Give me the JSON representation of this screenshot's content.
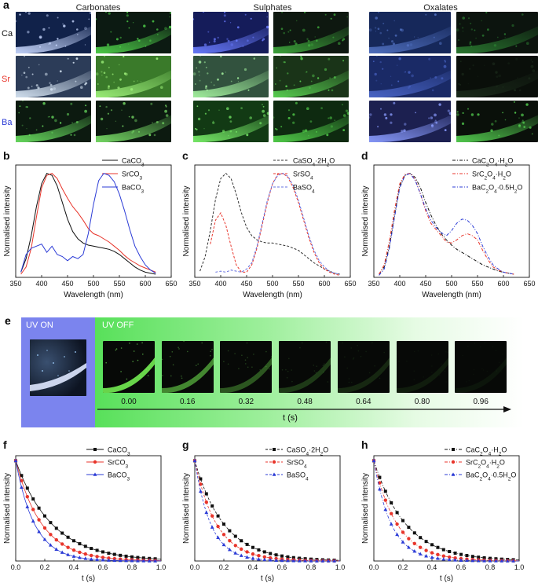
{
  "panel_a": {
    "letter": "a",
    "groups": [
      "Carbonates",
      "Sulphates",
      "Oxalates"
    ],
    "rows": [
      {
        "label": "Ca",
        "color": "#111111"
      },
      {
        "label": "Sr",
        "color": "#e8352b"
      },
      {
        "label": "Ba",
        "color": "#2b3bd6"
      }
    ]
  },
  "panel_e": {
    "letter": "e",
    "uv_on": "UV ON",
    "uv_off": "UV OFF",
    "times": [
      "0.00",
      "0.16",
      "0.32",
      "0.48",
      "0.64",
      "0.80",
      "0.96"
    ],
    "axis_label": "t (s)",
    "intensities": [
      1.0,
      0.62,
      0.38,
      0.24,
      0.15,
      0.09,
      0.06
    ]
  },
  "colors": {
    "black": "#111111",
    "red": "#e8352b",
    "blue": "#2b3bd6",
    "uv_bg": "#7b84ee",
    "glow": "#58e05a"
  },
  "chart_data": [
    {
      "id": "b",
      "type": "line",
      "title": "",
      "xlabel": "Wavelength (nm)",
      "ylabel": "Normalised intensity",
      "xlim": [
        350,
        650
      ],
      "ylim": [
        0,
        1.08
      ],
      "xticks": [
        350,
        400,
        450,
        500,
        550,
        600,
        650
      ],
      "series": [
        {
          "name": "CaCO₃",
          "color": "#111111",
          "dash": "",
          "x": [
            360,
            370,
            380,
            390,
            400,
            410,
            420,
            430,
            440,
            450,
            460,
            470,
            480,
            490,
            500,
            510,
            520,
            530,
            540,
            550,
            560,
            570,
            580,
            590,
            600,
            610,
            620
          ],
          "y": [
            0.05,
            0.18,
            0.4,
            0.68,
            0.9,
            1.0,
            0.98,
            0.88,
            0.72,
            0.56,
            0.44,
            0.37,
            0.33,
            0.31,
            0.3,
            0.29,
            0.28,
            0.27,
            0.25,
            0.22,
            0.18,
            0.14,
            0.1,
            0.07,
            0.05,
            0.04,
            0.03
          ]
        },
        {
          "name": "SrCO₃",
          "color": "#e8352b",
          "dash": "",
          "x": [
            360,
            370,
            380,
            390,
            400,
            410,
            420,
            430,
            440,
            450,
            460,
            470,
            480,
            490,
            500,
            510,
            520,
            530,
            540,
            550,
            560,
            570,
            580,
            590,
            600,
            610,
            620
          ],
          "y": [
            0.03,
            0.1,
            0.28,
            0.58,
            0.86,
            0.98,
            1.0,
            0.95,
            0.85,
            0.76,
            0.68,
            0.62,
            0.55,
            0.47,
            0.42,
            0.4,
            0.37,
            0.34,
            0.3,
            0.26,
            0.21,
            0.17,
            0.14,
            0.11,
            0.09,
            0.07,
            0.05
          ]
        },
        {
          "name": "BaCO₃",
          "color": "#2b3bd6",
          "dash": "",
          "x": [
            360,
            370,
            380,
            390,
            400,
            410,
            420,
            430,
            440,
            450,
            460,
            470,
            480,
            490,
            500,
            510,
            520,
            530,
            540,
            550,
            560,
            570,
            580,
            590,
            600,
            610,
            620
          ],
          "y": [
            0.05,
            0.22,
            0.28,
            0.3,
            0.32,
            0.24,
            0.3,
            0.22,
            0.2,
            0.16,
            0.2,
            0.18,
            0.22,
            0.42,
            0.7,
            0.93,
            1.0,
            0.98,
            0.92,
            0.8,
            0.64,
            0.46,
            0.3,
            0.2,
            0.12,
            0.07,
            0.04
          ]
        }
      ]
    },
    {
      "id": "c",
      "type": "line",
      "title": "",
      "xlabel": "Wavelength (nm)",
      "ylabel": "Normalised intensity",
      "xlim": [
        350,
        650
      ],
      "ylim": [
        0,
        1.08
      ],
      "xticks": [
        350,
        400,
        450,
        500,
        550,
        600,
        650
      ],
      "series": [
        {
          "name": "CaSO₄·2H₂O",
          "color": "#333333",
          "dash": "3,2",
          "x": [
            360,
            370,
            380,
            390,
            400,
            410,
            420,
            430,
            440,
            450,
            460,
            470,
            480,
            490,
            500,
            510,
            520,
            530,
            540,
            550,
            560,
            570,
            580,
            590,
            600,
            610,
            620,
            630
          ],
          "y": [
            0.06,
            0.2,
            0.45,
            0.75,
            0.95,
            1.0,
            0.95,
            0.8,
            0.62,
            0.48,
            0.4,
            0.36,
            0.34,
            0.33,
            0.33,
            0.32,
            0.31,
            0.3,
            0.28,
            0.26,
            0.22,
            0.18,
            0.14,
            0.11,
            0.08,
            0.06,
            0.04,
            0.03
          ]
        },
        {
          "name": "SrSO₄",
          "color": "#e8352b",
          "dash": "3,2",
          "x": [
            380,
            390,
            400,
            410,
            420,
            430,
            440,
            450,
            460,
            470,
            480,
            490,
            500,
            510,
            520,
            530,
            540,
            550,
            560,
            570,
            580,
            590,
            600,
            610,
            620,
            630
          ],
          "y": [
            0.32,
            0.55,
            0.62,
            0.5,
            0.3,
            0.12,
            0.05,
            0.05,
            0.12,
            0.28,
            0.5,
            0.72,
            0.9,
            0.99,
            1.0,
            0.96,
            0.86,
            0.72,
            0.55,
            0.38,
            0.24,
            0.14,
            0.08,
            0.05,
            0.03,
            0.02
          ]
        },
        {
          "name": "BaSO₄",
          "color": "#6570e0",
          "dash": "3,2",
          "x": [
            390,
            400,
            410,
            420,
            430,
            440,
            450,
            460,
            470,
            480,
            490,
            500,
            510,
            520,
            530,
            540,
            550,
            560,
            570,
            580,
            590,
            600,
            610,
            620,
            630
          ],
          "y": [
            0.05,
            0.06,
            0.05,
            0.07,
            0.06,
            0.05,
            0.08,
            0.14,
            0.3,
            0.52,
            0.74,
            0.9,
            0.98,
            1.0,
            0.97,
            0.88,
            0.74,
            0.57,
            0.4,
            0.26,
            0.16,
            0.1,
            0.06,
            0.04,
            0.03
          ]
        }
      ]
    },
    {
      "id": "d",
      "type": "line",
      "title": "",
      "xlabel": "Wavelength (nm)",
      "ylabel": "Normalised intensity",
      "xlim": [
        350,
        650
      ],
      "ylim": [
        0,
        1.08
      ],
      "xticks": [
        350,
        400,
        450,
        500,
        550,
        600,
        650
      ],
      "series": [
        {
          "name": "CaC₂O₄·H₂O",
          "color": "#111111",
          "dash": "4,2,1,2",
          "x": [
            360,
            370,
            380,
            390,
            400,
            410,
            420,
            430,
            440,
            450,
            460,
            470,
            480,
            490,
            500,
            510,
            520,
            530,
            540,
            550,
            560,
            570,
            580,
            590,
            600,
            610,
            620
          ],
          "y": [
            0.03,
            0.1,
            0.3,
            0.6,
            0.88,
            0.98,
            1.0,
            0.96,
            0.86,
            0.72,
            0.6,
            0.5,
            0.42,
            0.36,
            0.31,
            0.27,
            0.24,
            0.21,
            0.18,
            0.15,
            0.12,
            0.1,
            0.08,
            0.06,
            0.05,
            0.04,
            0.03
          ]
        },
        {
          "name": "SrC₂O₄·H₂O",
          "color": "#e8352b",
          "dash": "4,2,1,2",
          "x": [
            360,
            370,
            380,
            390,
            400,
            410,
            420,
            430,
            440,
            450,
            460,
            470,
            480,
            490,
            500,
            510,
            520,
            530,
            540,
            550,
            560,
            570,
            580,
            590,
            600,
            610,
            620
          ],
          "y": [
            0.03,
            0.12,
            0.35,
            0.65,
            0.9,
            0.99,
            1.0,
            0.94,
            0.8,
            0.64,
            0.52,
            0.46,
            0.4,
            0.34,
            0.33,
            0.36,
            0.4,
            0.42,
            0.4,
            0.36,
            0.26,
            0.17,
            0.1,
            0.07,
            0.05,
            0.04,
            0.03
          ]
        },
        {
          "name": "BaC₂O₄·0.5H₂O",
          "color": "#2b3bd6",
          "dash": "4,2,1,2",
          "x": [
            360,
            370,
            380,
            390,
            400,
            410,
            420,
            430,
            440,
            450,
            460,
            470,
            480,
            490,
            500,
            510,
            520,
            530,
            540,
            550,
            560,
            570,
            580,
            590,
            600,
            610,
            620
          ],
          "y": [
            0.02,
            0.08,
            0.28,
            0.58,
            0.86,
            0.98,
            1.0,
            0.93,
            0.8,
            0.66,
            0.55,
            0.48,
            0.43,
            0.4,
            0.45,
            0.52,
            0.56,
            0.55,
            0.5,
            0.42,
            0.3,
            0.2,
            0.12,
            0.08,
            0.05,
            0.04,
            0.03
          ]
        }
      ]
    },
    {
      "id": "f",
      "type": "line",
      "title": "",
      "xlabel": "t (s)",
      "ylabel": "Normalised intensity",
      "xlim": [
        0,
        1.0
      ],
      "ylim": [
        0,
        1.05
      ],
      "xticks": [
        0.0,
        0.2,
        0.4,
        0.6,
        0.8,
        1.0
      ],
      "tau": [
        0.25,
        0.18,
        0.13
      ],
      "series": [
        {
          "name": "CaCO₃",
          "color": "#111111",
          "marker": "square",
          "dash": ""
        },
        {
          "name": "SrCO₃",
          "color": "#e8352b",
          "marker": "circle",
          "dash": ""
        },
        {
          "name": "BaCO₃",
          "color": "#2b3bd6",
          "marker": "triangle",
          "dash": ""
        }
      ]
    },
    {
      "id": "g",
      "type": "line",
      "title": "",
      "xlabel": "t (s)",
      "ylabel": "Normalised intensity",
      "xlim": [
        0,
        1.0
      ],
      "ylim": [
        0,
        1.05
      ],
      "xticks": [
        0.0,
        0.2,
        0.4,
        0.6,
        0.8,
        1.0
      ],
      "tau": [
        0.2,
        0.15,
        0.11
      ],
      "series": [
        {
          "name": "CaSO₄·2H₂O",
          "color": "#111111",
          "marker": "square",
          "dash": "3,2"
        },
        {
          "name": "SrSO₄",
          "color": "#e8352b",
          "marker": "circle",
          "dash": "3,2"
        },
        {
          "name": "BaSO₄",
          "color": "#2b3bd6",
          "marker": "triangle",
          "dash": "3,2"
        }
      ]
    },
    {
      "id": "h",
      "type": "line",
      "title": "",
      "xlabel": "t (s)",
      "ylabel": "Normalised intensity",
      "xlim": [
        0,
        1.0
      ],
      "ylim": [
        0,
        1.05
      ],
      "xticks": [
        0.0,
        0.2,
        0.4,
        0.6,
        0.8,
        1.0
      ],
      "tau": [
        0.22,
        0.16,
        0.12
      ],
      "series": [
        {
          "name": "CaC₂O₄·H₂O",
          "color": "#111111",
          "marker": "square",
          "dash": "4,2,1,2"
        },
        {
          "name": "SrC₂O₄·H₂O",
          "color": "#e8352b",
          "marker": "circle",
          "dash": "4,2,1,2"
        },
        {
          "name": "BaC₂O₄·0.5H₂O",
          "color": "#2b3bd6",
          "marker": "triangle",
          "dash": "4,2,1,2"
        }
      ]
    }
  ]
}
